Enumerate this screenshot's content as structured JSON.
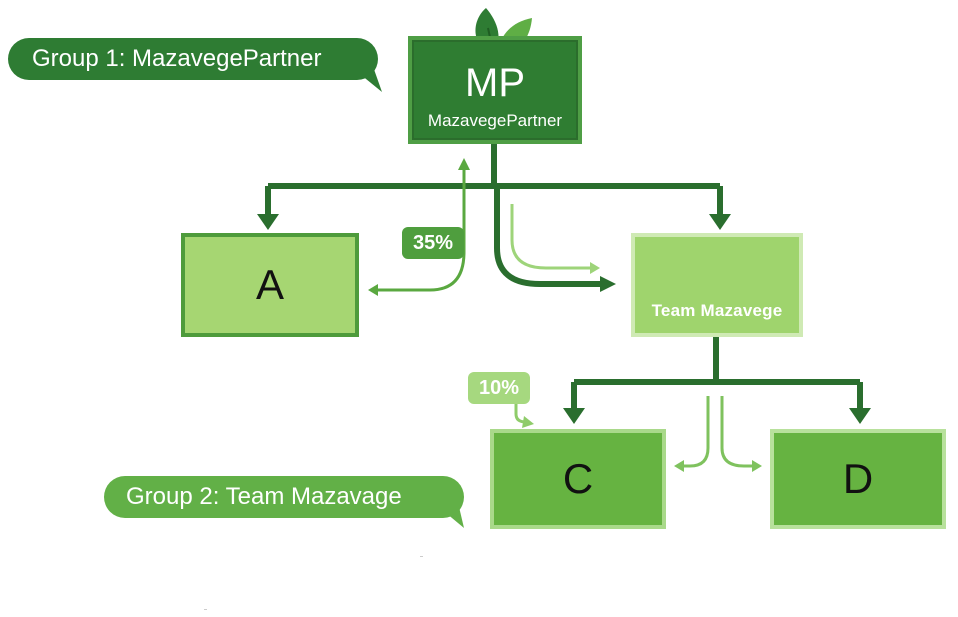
{
  "top_node": {
    "abbreviation": "MP",
    "name": "MazavegePartner"
  },
  "group_labels": {
    "group1": "Group 1: MazavegePartner",
    "group2": "Group 2: Team Mazavage"
  },
  "nodes": {
    "a": "A",
    "team": "Team Mazavege",
    "c": "C",
    "d": "D"
  },
  "percentages": {
    "a_share": "35%",
    "c_share": "10%"
  },
  "icons": {
    "top": "leaf-icon",
    "team": "handshake-icon"
  },
  "colors": {
    "dark_green": "#2e7c33",
    "mid_green": "#4f9e3e",
    "light_green": "#a6d672",
    "team_green": "#9fd46d",
    "box_green": "#66b341"
  }
}
